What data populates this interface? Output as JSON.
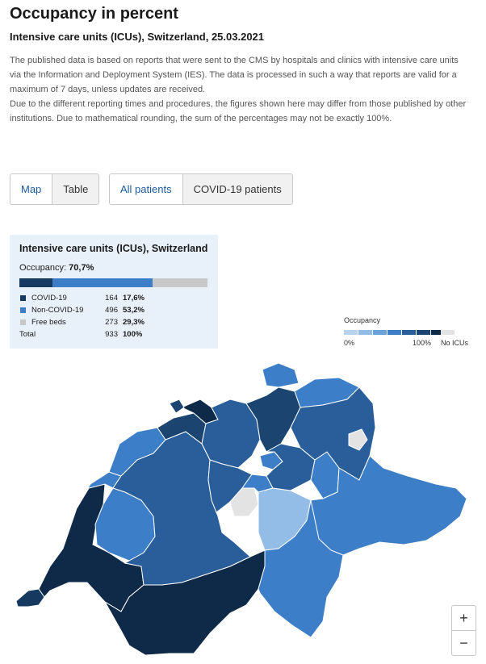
{
  "header": {
    "title": "Occupancy in percent",
    "subtitle": "Intensive care units (ICUs), Switzerland, 25.03.2021",
    "description": [
      "The published data is based on reports that were sent to the CMS by hospitals and clinics with intensive care units via the Information and Deployment System (IES). The data is processed in such a way that reports are valid for a maximum of 7 days, unless updates are received.",
      "Due to the different reporting times and procedures, the figures shown here may differ from those published by other institutions. Due to mathematical rounding, the sum of the percentages may not be exactly 100%."
    ]
  },
  "view_toggle": {
    "map_label": "Map",
    "table_label": "Table",
    "selected": "Map"
  },
  "patient_toggle": {
    "all_label": "All patients",
    "covid_label": "COVID-19 patients",
    "selected": "All patients"
  },
  "summary": {
    "title": "Intensive care units (ICUs), Switzerland",
    "occupancy_label": "Occupancy:",
    "occupancy_value": "70,7%",
    "rows": [
      {
        "label": "COVID-19",
        "count": "164",
        "percent": "17,6%",
        "color": "#163a5f",
        "fraction": 0.176
      },
      {
        "label": "Non-COVID-19",
        "count": "496",
        "percent": "53,2%",
        "color": "#3d7ec9",
        "fraction": 0.532
      },
      {
        "label": "Free beds",
        "count": "273",
        "percent": "29,3%",
        "color": "#c8c8c8",
        "fraction": 0.293
      }
    ],
    "total": {
      "label": "Total",
      "count": "933",
      "percent": "100%"
    }
  },
  "color_scale": {
    "title": "Occupancy",
    "min_label": "0%",
    "max_label": "100%",
    "no_data_label": "No ICUs",
    "colors": [
      "#b8d3ee",
      "#93bce6",
      "#6ba2da",
      "#3d7ec9",
      "#2a5e9b",
      "#1b4570",
      "#0f2a48"
    ],
    "no_data_color": "#e3e3e3"
  },
  "zoom": {
    "in_label": "+",
    "out_label": "−"
  }
}
